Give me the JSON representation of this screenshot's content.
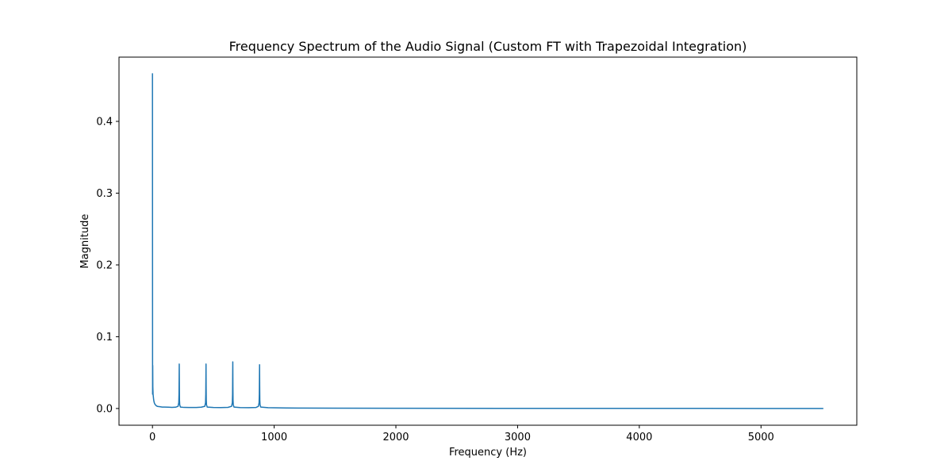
{
  "chart_data": {
    "type": "line",
    "title": "Frequency Spectrum of the Audio Signal (Custom FT with Trapezoidal Integration)",
    "xlabel": "Frequency (Hz)",
    "ylabel": "Magnitude",
    "xlim": [
      -275,
      5787
    ],
    "ylim": [
      -0.0233,
      0.4895
    ],
    "xticks": [
      0,
      1000,
      2000,
      3000,
      4000,
      5000
    ],
    "xtick_labels": [
      "0",
      "1000",
      "2000",
      "3000",
      "4000",
      "5000"
    ],
    "yticks": [
      0.0,
      0.1,
      0.2,
      0.3,
      0.4
    ],
    "ytick_labels": [
      "0.0",
      "0.1",
      "0.2",
      "0.3",
      "0.4"
    ],
    "grid": false,
    "color": "#1f77b4",
    "series": [
      {
        "x": [
          0,
          1,
          2,
          3,
          4,
          5,
          8,
          10,
          12,
          15,
          20,
          25,
          30,
          40,
          60,
          80,
          100,
          130,
          160,
          190,
          210,
          216,
          218,
          219,
          220,
          221,
          222,
          224,
          230,
          260,
          300,
          360,
          400,
          430,
          436,
          438,
          439,
          440,
          441,
          442,
          444,
          450,
          500,
          560,
          620,
          650,
          656,
          658,
          659,
          660,
          661,
          662,
          664,
          670,
          720,
          790,
          850,
          870,
          876,
          878,
          879,
          880,
          881,
          882,
          884,
          890,
          950,
          1000,
          1100,
          1200,
          1500,
          2000,
          3000,
          4000,
          5000,
          5512
        ],
        "y": [
          0.467,
          0.02,
          0.06,
          0.03,
          0.025,
          0.02,
          0.015,
          0.012,
          0.01,
          0.008,
          0.006,
          0.005,
          0.004,
          0.003,
          0.0025,
          0.002,
          0.002,
          0.0018,
          0.0016,
          0.0018,
          0.003,
          0.008,
          0.02,
          0.04,
          0.062,
          0.03,
          0.012,
          0.005,
          0.002,
          0.0015,
          0.0014,
          0.0014,
          0.0018,
          0.003,
          0.008,
          0.02,
          0.04,
          0.062,
          0.03,
          0.012,
          0.005,
          0.002,
          0.0014,
          0.0013,
          0.0016,
          0.003,
          0.008,
          0.02,
          0.045,
          0.065,
          0.03,
          0.012,
          0.005,
          0.002,
          0.0013,
          0.0012,
          0.0014,
          0.003,
          0.008,
          0.02,
          0.04,
          0.061,
          0.03,
          0.012,
          0.005,
          0.002,
          0.0012,
          0.001,
          0.0008,
          0.0006,
          0.0004,
          0.0003,
          0.0002,
          0.0002,
          0.0001,
          0.0001
        ]
      }
    ]
  }
}
